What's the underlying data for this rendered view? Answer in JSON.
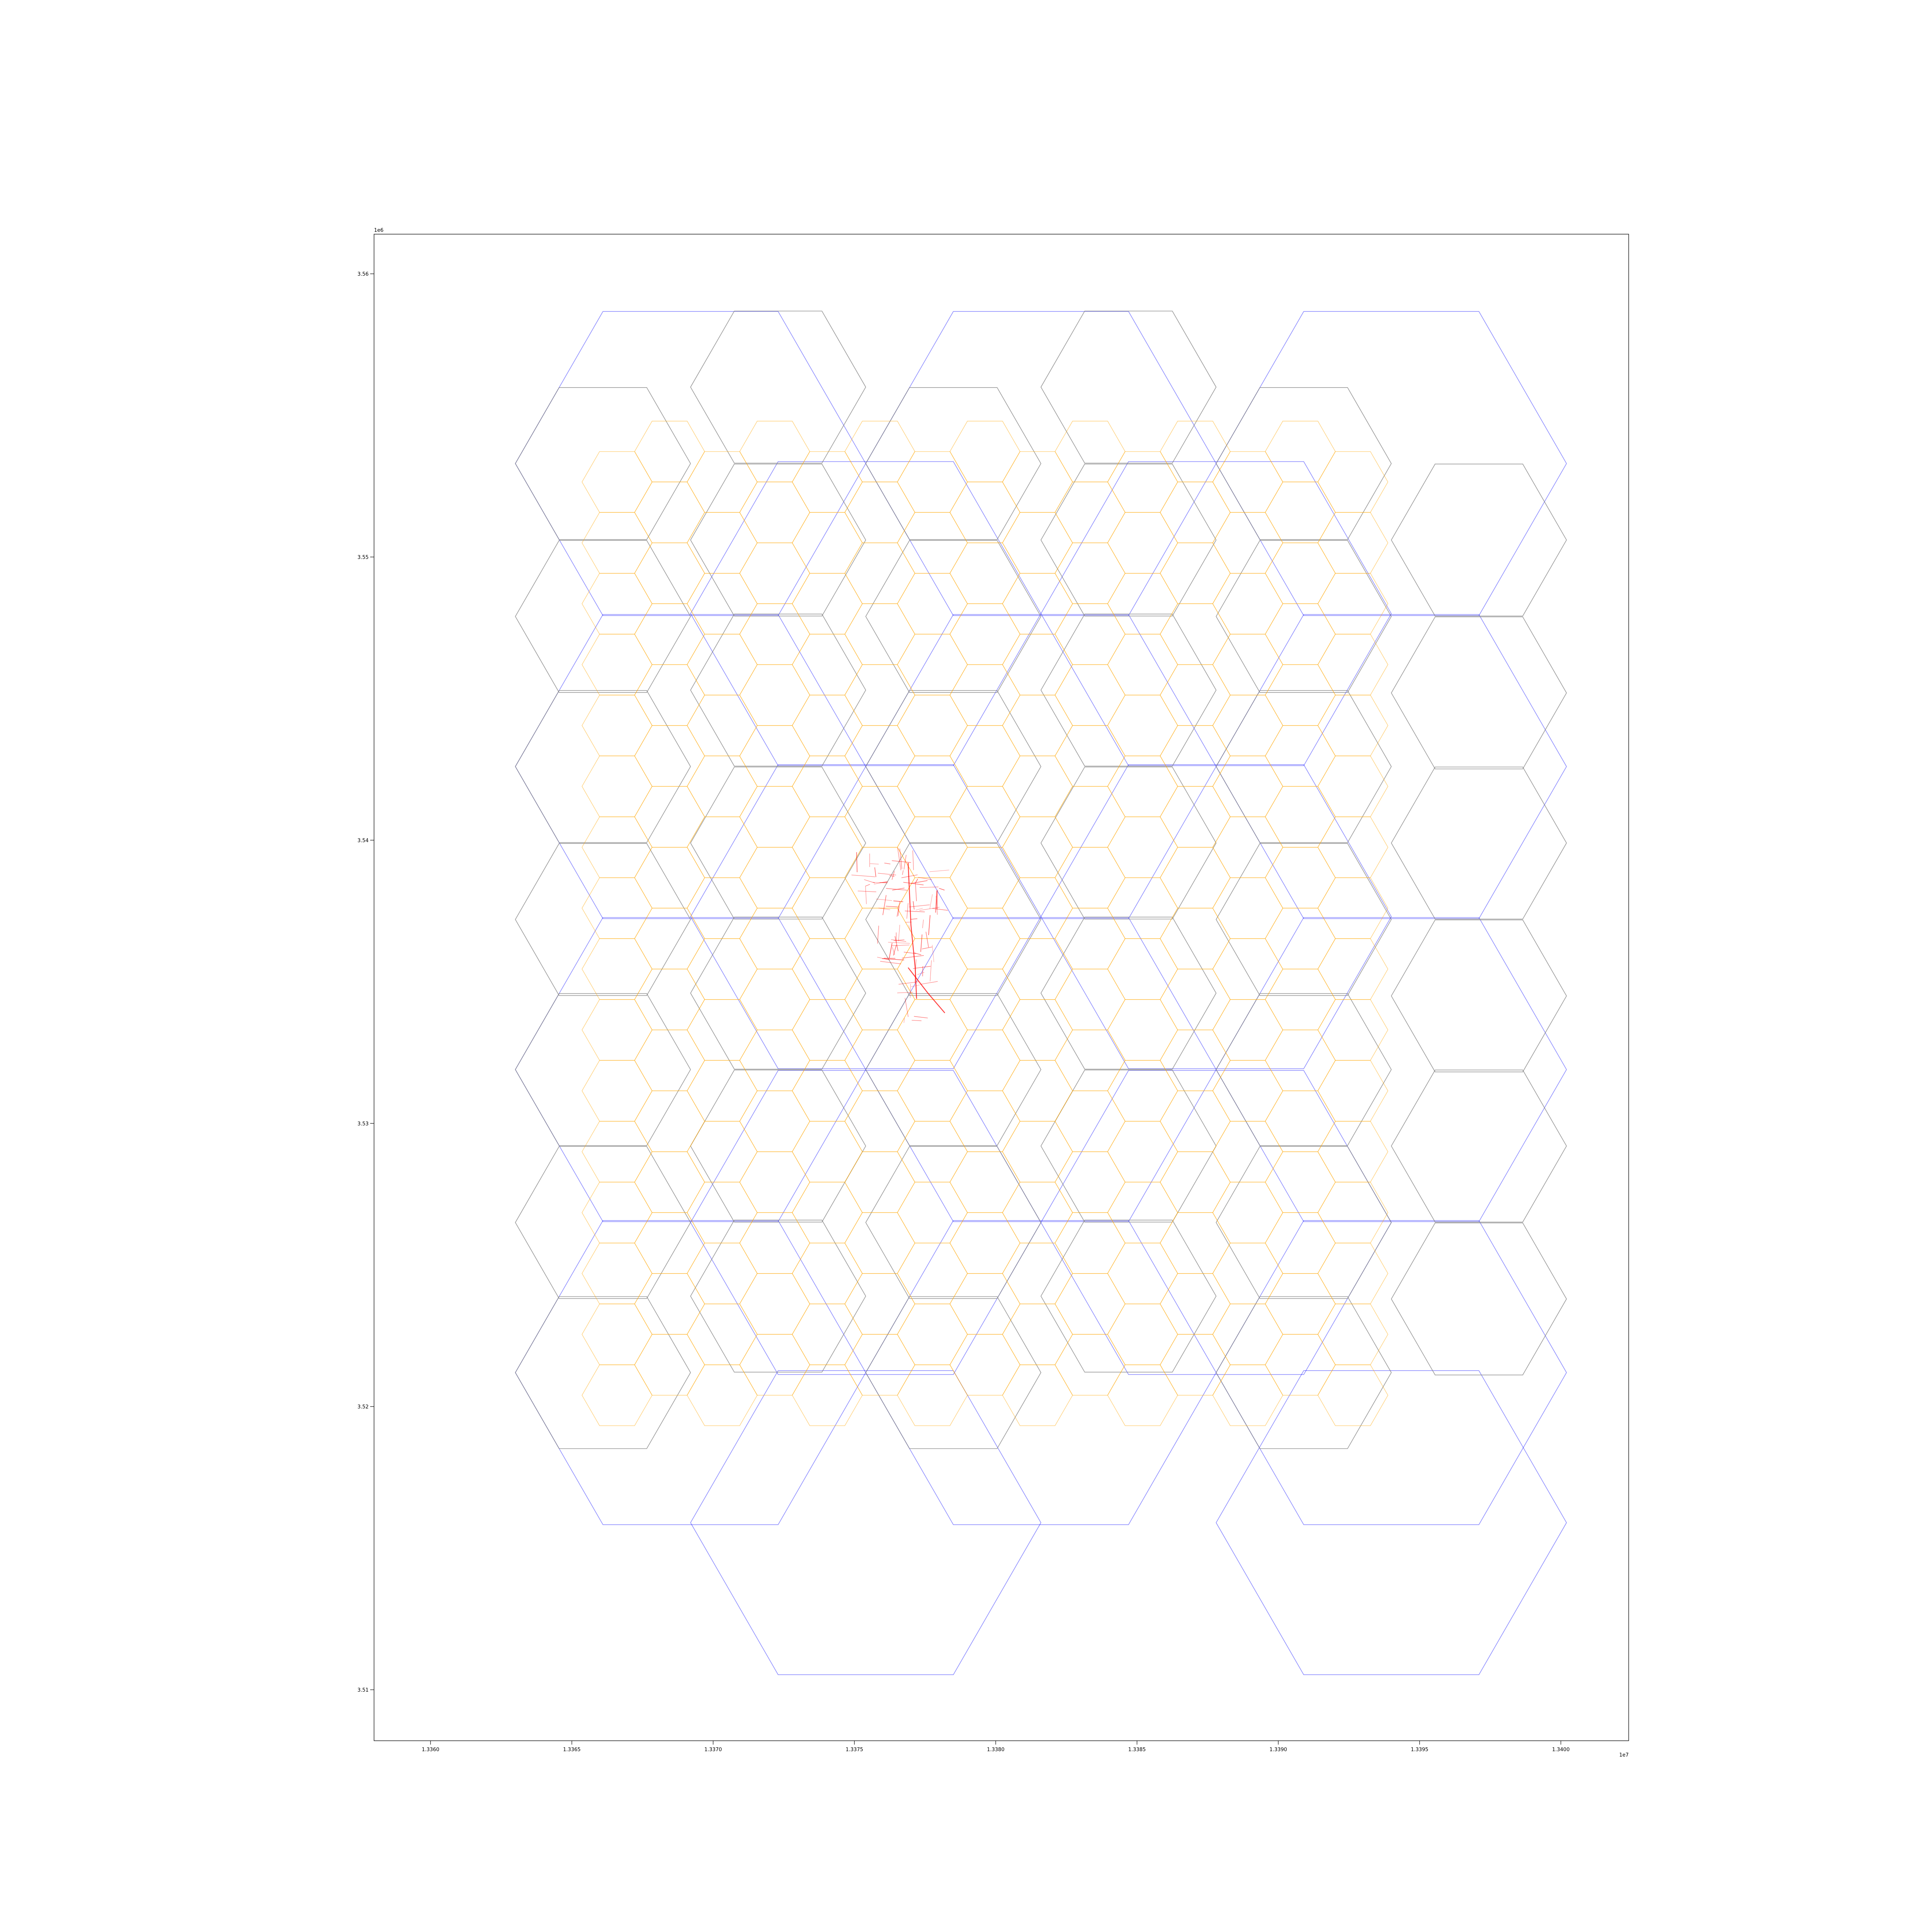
{
  "chart_data": {
    "type": "map",
    "title": "",
    "xlabel": "",
    "ylabel": "",
    "xlim": [
      13358000,
      13402400
    ],
    "ylim": [
      3508200,
      3561400
    ],
    "x_offset_label": "1e7",
    "y_offset_label": "1e6",
    "x_ticks": [
      {
        "value": 13360000,
        "label": "1.3360"
      },
      {
        "value": 13365000,
        "label": "1.3365"
      },
      {
        "value": 13370000,
        "label": "1.3370"
      },
      {
        "value": 13375000,
        "label": "1.3375"
      },
      {
        "value": 13380000,
        "label": "1.3380"
      },
      {
        "value": 13385000,
        "label": "1.3385"
      },
      {
        "value": 13390000,
        "label": "1.3390"
      },
      {
        "value": 13395000,
        "label": "1.3395"
      },
      {
        "value": 13400000,
        "label": "1.3400"
      }
    ],
    "y_ticks": [
      {
        "value": 3510000,
        "label": "3.51"
      },
      {
        "value": 3520000,
        "label": "3.52"
      },
      {
        "value": 3530000,
        "label": "3.53"
      },
      {
        "value": 3540000,
        "label": "3.54"
      },
      {
        "value": 3550000,
        "label": "3.55"
      },
      {
        "value": 3560000,
        "label": "3.56"
      }
    ],
    "grid": false,
    "hex_layers": [
      {
        "color": "#0000ff",
        "alpha": 0.45,
        "circumradius": 6200,
        "cells": [
          [
            13369200,
            3553300
          ],
          [
            13369200,
            3542600
          ],
          [
            13369200,
            3531900
          ],
          [
            13369200,
            3521200
          ],
          [
            13375400,
            3548000
          ],
          [
            13375400,
            3537300
          ],
          [
            13375400,
            3526500
          ],
          [
            13375400,
            3515900
          ],
          [
            13381600,
            3553300
          ],
          [
            13381600,
            3542600
          ],
          [
            13381600,
            3531900
          ],
          [
            13381600,
            3521200
          ],
          [
            13387800,
            3548000
          ],
          [
            13387800,
            3537300
          ],
          [
            13387800,
            3526500
          ],
          [
            13394000,
            3553300
          ],
          [
            13394000,
            3542600
          ],
          [
            13394000,
            3531900
          ],
          [
            13394000,
            3521200
          ],
          [
            13394000,
            3515900
          ]
        ]
      },
      {
        "color": "#808080",
        "alpha": 0.8,
        "circumradius": 3100,
        "cells": [
          [
            13366100,
            3553300
          ],
          [
            13372300,
            3556000
          ],
          [
            13378500,
            3553300
          ],
          [
            13384700,
            3556000
          ],
          [
            13390900,
            3553300
          ],
          [
            13397100,
            3550600
          ],
          [
            13366100,
            3547900
          ],
          [
            13372300,
            3550600
          ],
          [
            13378500,
            3547900
          ],
          [
            13384700,
            3550600
          ],
          [
            13390900,
            3547900
          ],
          [
            13397100,
            3545200
          ],
          [
            13366100,
            3542600
          ],
          [
            13372300,
            3545300
          ],
          [
            13378500,
            3542600
          ],
          [
            13384700,
            3545300
          ],
          [
            13390900,
            3542600
          ],
          [
            13397100,
            3539900
          ],
          [
            13366100,
            3537200
          ],
          [
            13372300,
            3539900
          ],
          [
            13378500,
            3537200
          ],
          [
            13384700,
            3539900
          ],
          [
            13390900,
            3537200
          ],
          [
            13397100,
            3534500
          ],
          [
            13366100,
            3531900
          ],
          [
            13372300,
            3534600
          ],
          [
            13378500,
            3531900
          ],
          [
            13384700,
            3534600
          ],
          [
            13390900,
            3531900
          ],
          [
            13397100,
            3529200
          ],
          [
            13366100,
            3526500
          ],
          [
            13372300,
            3529200
          ],
          [
            13378500,
            3526500
          ],
          [
            13384700,
            3529200
          ],
          [
            13390900,
            3526500
          ],
          [
            13397100,
            3523800
          ],
          [
            13366100,
            3521200
          ],
          [
            13372300,
            3523900
          ],
          [
            13378500,
            3521200
          ],
          [
            13384700,
            3523900
          ],
          [
            13390900,
            3521200
          ]
        ]
      },
      {
        "color": "#ffa500",
        "alpha": 0.55,
        "circumradius": 1240,
        "grid": {
          "x0": 13366600,
          "x1": 13393100,
          "y0": 3520400,
          "y1": 3554700,
          "colstep": 1860,
          "rowstep": 2150
        }
      }
    ],
    "road_network": {
      "color": "#ff0000",
      "alpha": 0.55,
      "bbox_x": [
        13375000,
        13378300
      ],
      "bbox_y": [
        3533600,
        3539400
      ],
      "main_roads": [
        [
          [
            13376900,
            3539200
          ],
          [
            13377000,
            3537000
          ],
          [
            13377150,
            3535500
          ],
          [
            13377200,
            3534400
          ]
        ],
        [
          [
            13376900,
            3535500
          ],
          [
            13377600,
            3534600
          ],
          [
            13378200,
            3533900
          ]
        ]
      ]
    }
  }
}
